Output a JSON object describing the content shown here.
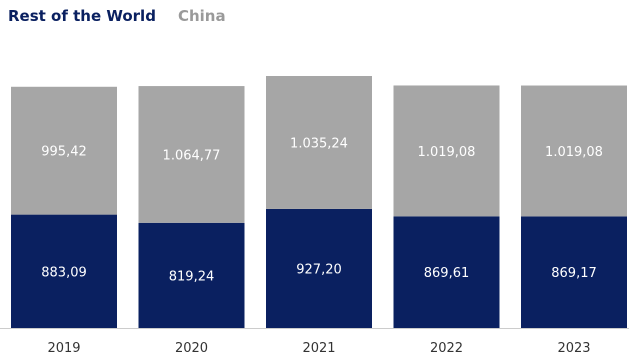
{
  "legend": {
    "rest_of_world": "Rest of the World",
    "china": "China"
  },
  "chart_data": {
    "type": "bar",
    "stacked": true,
    "categories": [
      "2019",
      "2020",
      "2021",
      "2022",
      "2023"
    ],
    "series": [
      {
        "name": "Rest of the World",
        "color": "#0a2060",
        "values": [
          883.09,
          819.24,
          927.2,
          869.61,
          869.17
        ],
        "labels": [
          "883,09",
          "819,24",
          "927,20",
          "869,61",
          "869,17"
        ]
      },
      {
        "name": "China",
        "color": "#a6a6a6",
        "values": [
          995.42,
          1064.77,
          1035.24,
          1019.08,
          1019.08
        ],
        "labels": [
          "995,42",
          "1.064,77",
          "1.035,24",
          "1.019,08",
          "1.019,08"
        ]
      }
    ],
    "ylim": [
      0,
      1962.44
    ],
    "grid": false,
    "legend_position": "top-left"
  }
}
